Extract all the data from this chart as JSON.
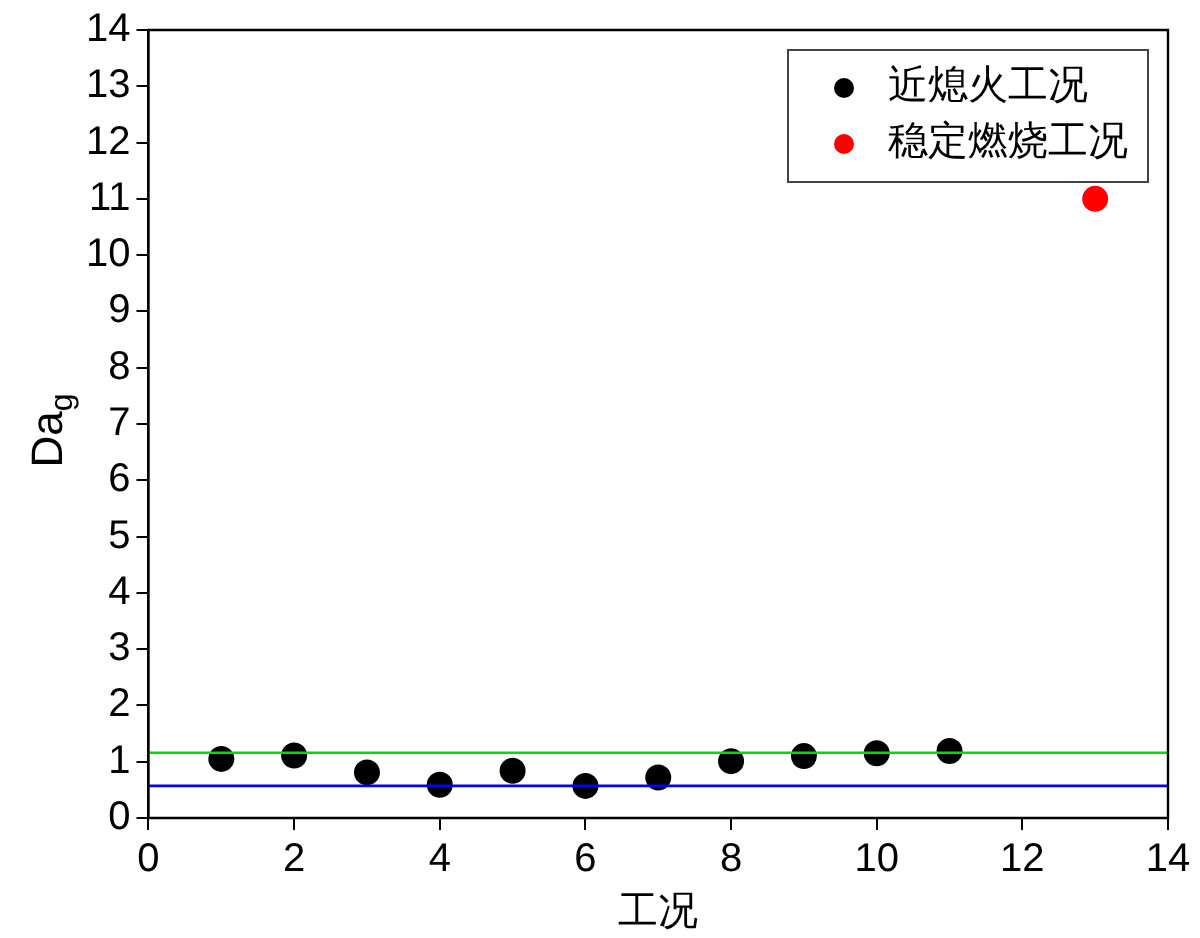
{
  "chart_data": {
    "type": "scatter",
    "xlabel": "工况",
    "ylabel": "Da$_{g}$",
    "xlim": [
      0,
      14
    ],
    "xticks": [
      0,
      2,
      4,
      6,
      8,
      10,
      12,
      14
    ],
    "ylim": [
      0,
      14
    ],
    "yticks": [
      0,
      1,
      2,
      3,
      4,
      5,
      6,
      7,
      8,
      9,
      10,
      11,
      12,
      13,
      14
    ],
    "series": [
      {
        "name": "近熄火工况",
        "color": "#000000",
        "x": [
          1,
          2,
          3,
          4,
          5,
          6,
          7,
          8,
          9,
          10,
          11
        ],
        "values": [
          1.05,
          1.11,
          0.81,
          0.59,
          0.84,
          0.57,
          0.72,
          1.01,
          1.1,
          1.15,
          1.19
        ]
      },
      {
        "name": "稳定燃烧工况",
        "color": "#ff0000",
        "x": [
          13
        ],
        "values": [
          11.0
        ]
      }
    ],
    "ref_lines": [
      {
        "axis": "y",
        "value": 1.16,
        "label": null,
        "color": "#00dd00"
      },
      {
        "axis": "y",
        "value": 0.57,
        "label": null,
        "color": "#0000ff"
      }
    ],
    "marker": "circle",
    "legend": "top right",
    "grid": false
  }
}
